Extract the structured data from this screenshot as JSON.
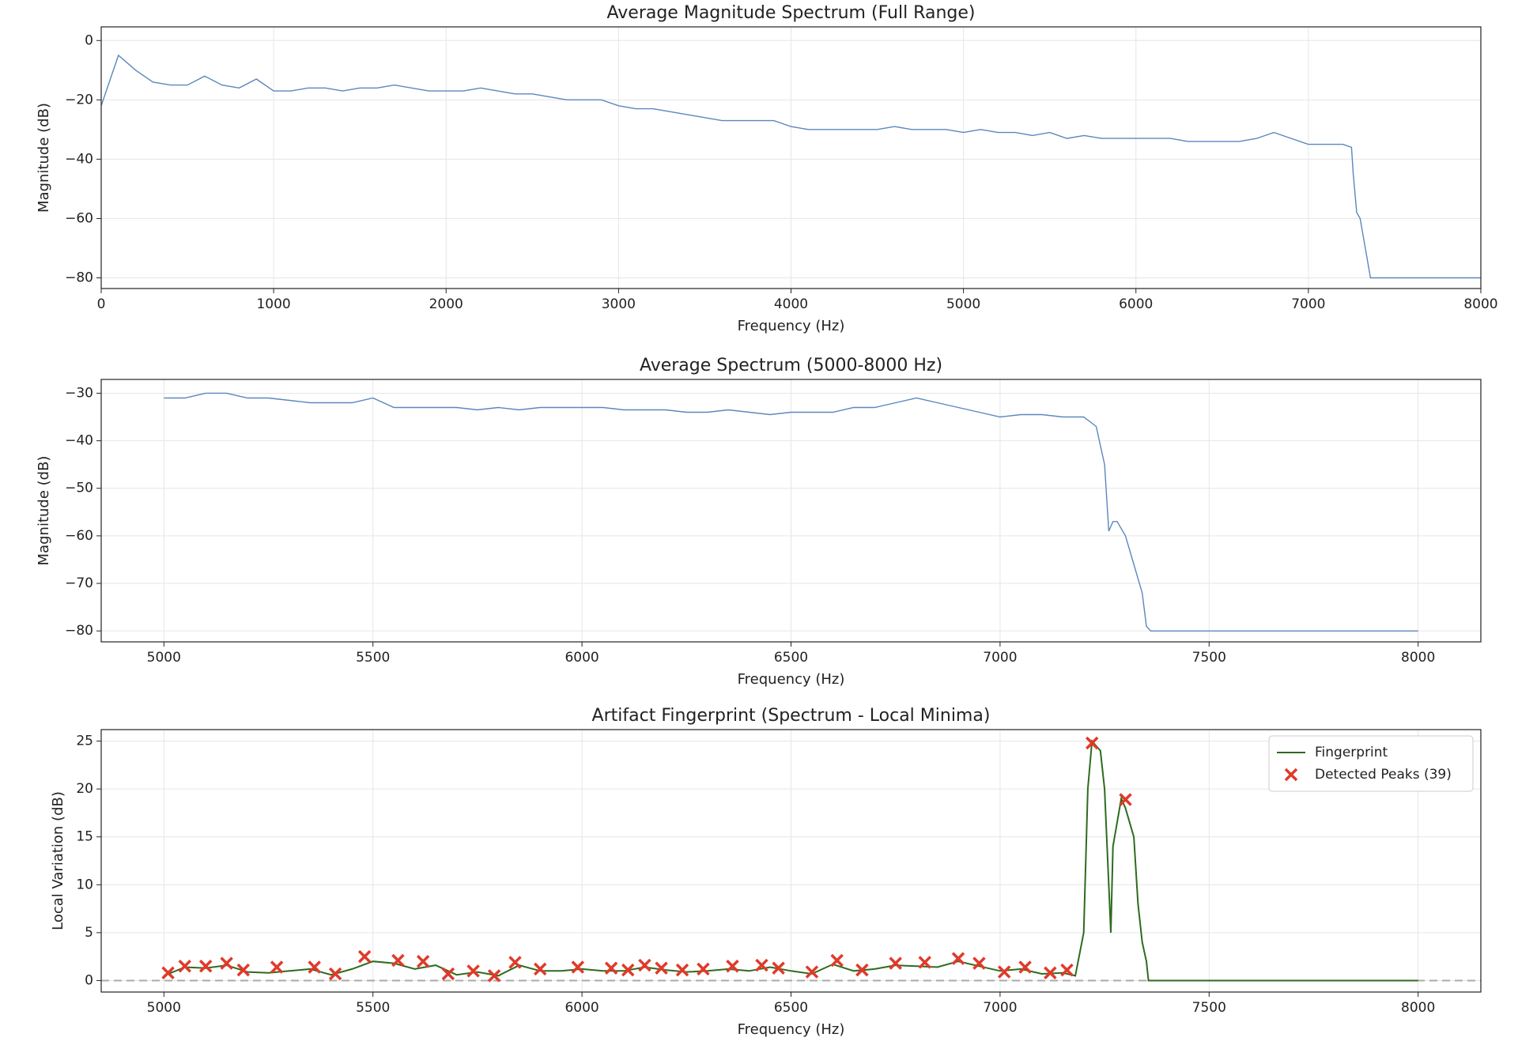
{
  "chart_data": [
    {
      "type": "line",
      "title": "Average Magnitude Spectrum (Full Range)",
      "xlabel": "Frequency (Hz)",
      "ylabel": "Magnitude (dB)",
      "color": "#5b87bd",
      "grid": true,
      "xlim": [
        0,
        8000
      ],
      "ylim": [
        -83.6,
        4.6
      ],
      "xticks": [
        0,
        1000,
        2000,
        3000,
        4000,
        5000,
        6000,
        7000,
        8000
      ],
      "yticks": [
        {
          "value": 0,
          "label": "0"
        },
        {
          "value": -20,
          "label": "−20"
        },
        {
          "value": -40,
          "label": "−40"
        },
        {
          "value": -60,
          "label": "−60"
        },
        {
          "value": -80,
          "label": "−80"
        }
      ],
      "x": [
        0,
        100,
        200,
        300,
        400,
        500,
        600,
        700,
        800,
        900,
        1000,
        1100,
        1200,
        1300,
        1400,
        1500,
        1600,
        1700,
        1800,
        1900,
        2000,
        2100,
        2200,
        2300,
        2400,
        2500,
        2600,
        2700,
        2800,
        2900,
        3000,
        3100,
        3200,
        3300,
        3400,
        3500,
        3600,
        3700,
        3800,
        3900,
        4000,
        4100,
        4200,
        4300,
        4400,
        4500,
        4600,
        4700,
        4800,
        4900,
        5000,
        5100,
        5200,
        5300,
        5400,
        5500,
        5600,
        5700,
        5800,
        5900,
        6000,
        6100,
        6200,
        6300,
        6400,
        6500,
        6600,
        6700,
        6800,
        6900,
        7000,
        7100,
        7200,
        7250,
        7260,
        7280,
        7300,
        7330,
        7360,
        7400,
        7500,
        7600,
        7700,
        7800,
        7900,
        8000
      ],
      "values": [
        -22,
        -5,
        -10,
        -14,
        -15,
        -15,
        -12,
        -15,
        -16,
        -13,
        -17,
        -17,
        -16,
        -16,
        -17,
        -16,
        -16,
        -15,
        -16,
        -17,
        -17,
        -17,
        -16,
        -17,
        -18,
        -18,
        -19,
        -20,
        -20,
        -20,
        -22,
        -23,
        -23,
        -24,
        -25,
        -26,
        -27,
        -27,
        -27,
        -27,
        -29,
        -30,
        -30,
        -30,
        -30,
        -30,
        -29,
        -30,
        -30,
        -30,
        -31,
        -30,
        -31,
        -31,
        -32,
        -31,
        -33,
        -32,
        -33,
        -33,
        -33,
        -33,
        -33,
        -34,
        -34,
        -34,
        -34,
        -33,
        -31,
        -33,
        -35,
        -35,
        -35,
        -36,
        -45,
        -58,
        -60,
        -70,
        -80,
        -80,
        -80,
        -80,
        -80,
        -80,
        -80,
        -80
      ]
    },
    {
      "type": "line",
      "title": "Average Spectrum (5000-8000 Hz)",
      "xlabel": "Frequency (Hz)",
      "ylabel": "Magnitude (dB)",
      "color": "#5b87bd",
      "grid": true,
      "xlim": [
        4850,
        8150
      ],
      "ylim": [
        -82.3,
        -27.1
      ],
      "xticks": [
        5000,
        5500,
        6000,
        6500,
        7000,
        7500,
        8000
      ],
      "yticks": [
        {
          "value": -30,
          "label": "−30"
        },
        {
          "value": -40,
          "label": "−40"
        },
        {
          "value": -50,
          "label": "−50"
        },
        {
          "value": -60,
          "label": "−60"
        },
        {
          "value": -70,
          "label": "−70"
        },
        {
          "value": -80,
          "label": "−80"
        }
      ],
      "x": [
        5000,
        5050,
        5100,
        5150,
        5200,
        5250,
        5300,
        5350,
        5400,
        5450,
        5500,
        5550,
        5600,
        5650,
        5700,
        5750,
        5800,
        5850,
        5900,
        5950,
        6000,
        6050,
        6100,
        6150,
        6200,
        6250,
        6300,
        6350,
        6400,
        6450,
        6500,
        6550,
        6600,
        6650,
        6700,
        6750,
        6800,
        6850,
        6900,
        6950,
        7000,
        7050,
        7100,
        7150,
        7200,
        7230,
        7250,
        7260,
        7270,
        7280,
        7300,
        7320,
        7340,
        7350,
        7360,
        7400,
        7500,
        7600,
        7700,
        7800,
        7900,
        8000
      ],
      "values": [
        -31,
        -31,
        -30,
        -30,
        -31,
        -31,
        -31.5,
        -32,
        -32,
        -32,
        -31,
        -33,
        -33,
        -33,
        -33,
        -33.5,
        -33,
        -33.5,
        -33,
        -33,
        -33,
        -33,
        -33.5,
        -33.5,
        -33.5,
        -34,
        -34,
        -33.5,
        -34,
        -34.5,
        -34,
        -34,
        -34,
        -33,
        -33,
        -32,
        -31,
        -32,
        -33,
        -34,
        -35,
        -34.5,
        -34.5,
        -35,
        -35,
        -37,
        -45,
        -59,
        -57,
        -57,
        -60,
        -66,
        -72,
        -79,
        -80,
        -80,
        -80,
        -80,
        -80,
        -80,
        -80,
        -80
      ]
    },
    {
      "type": "line",
      "title": "Artifact Fingerprint (Spectrum - Local Minima)",
      "xlabel": "Frequency (Hz)",
      "ylabel": "Local Variation (dB)",
      "grid": true,
      "legend": "upper right",
      "hline": 0,
      "xlim": [
        4850,
        8150
      ],
      "ylim": [
        -1.2,
        26.2
      ],
      "xticks": [
        5000,
        5500,
        6000,
        6500,
        7000,
        7500,
        8000
      ],
      "yticks": [
        0,
        5,
        10,
        15,
        20,
        25
      ],
      "series": [
        {
          "name": "Fingerprint",
          "type": "line",
          "color": "#2e6b1f",
          "x": [
            5000,
            5050,
            5100,
            5150,
            5200,
            5250,
            5300,
            5350,
            5400,
            5450,
            5500,
            5550,
            5600,
            5650,
            5700,
            5750,
            5800,
            5850,
            5900,
            5950,
            6000,
            6050,
            6100,
            6150,
            6200,
            6250,
            6300,
            6350,
            6400,
            6450,
            6500,
            6550,
            6600,
            6650,
            6700,
            6750,
            6800,
            6850,
            6900,
            6950,
            7000,
            7050,
            7100,
            7150,
            7180,
            7200,
            7210,
            7220,
            7240,
            7250,
            7260,
            7265,
            7270,
            7290,
            7300,
            7320,
            7330,
            7340,
            7350,
            7355,
            7400,
            7500,
            7600,
            7700,
            7800,
            7900,
            8000
          ],
          "values": [
            0.5,
            1.4,
            1.3,
            1.6,
            0.9,
            0.8,
            1.0,
            1.2,
            0.6,
            1.2,
            2.0,
            1.8,
            1.2,
            1.6,
            0.6,
            0.9,
            0.5,
            1.6,
            1.0,
            1.0,
            1.2,
            1.0,
            1.0,
            1.4,
            1.1,
            0.9,
            1.0,
            1.2,
            1.0,
            1.4,
            1.0,
            0.7,
            1.7,
            1.0,
            1.2,
            1.6,
            1.5,
            1.4,
            2.0,
            1.5,
            1.0,
            1.2,
            0.7,
            0.8,
            0.5,
            5,
            20,
            25,
            24,
            20,
            10,
            5,
            14,
            19,
            18,
            15,
            8,
            4,
            2,
            0,
            0,
            0,
            0,
            0,
            0,
            0,
            0
          ]
        },
        {
          "name": "Detected Peaks (39)",
          "type": "scatter",
          "color": "#e03a2a",
          "x": [
            5010,
            5050,
            5100,
            5150,
            5190,
            5270,
            5360,
            5410,
            5480,
            5560,
            5620,
            5680,
            5740,
            5790,
            5840,
            5900,
            5990,
            6070,
            6110,
            6150,
            6190,
            6240,
            6290,
            6360,
            6430,
            6470,
            6550,
            6610,
            6670,
            6750,
            6820,
            6900,
            6950,
            7010,
            7060,
            7120,
            7160,
            7220,
            7300
          ],
          "values": [
            0.8,
            1.5,
            1.5,
            1.8,
            1.1,
            1.4,
            1.4,
            0.7,
            2.5,
            2.1,
            2.0,
            0.7,
            1.0,
            0.5,
            1.9,
            1.2,
            1.4,
            1.3,
            1.1,
            1.6,
            1.3,
            1.1,
            1.2,
            1.5,
            1.6,
            1.3,
            0.9,
            2.1,
            1.1,
            1.8,
            1.9,
            2.3,
            1.8,
            0.9,
            1.4,
            0.8,
            1.1,
            24.8,
            18.9
          ]
        }
      ]
    }
  ]
}
